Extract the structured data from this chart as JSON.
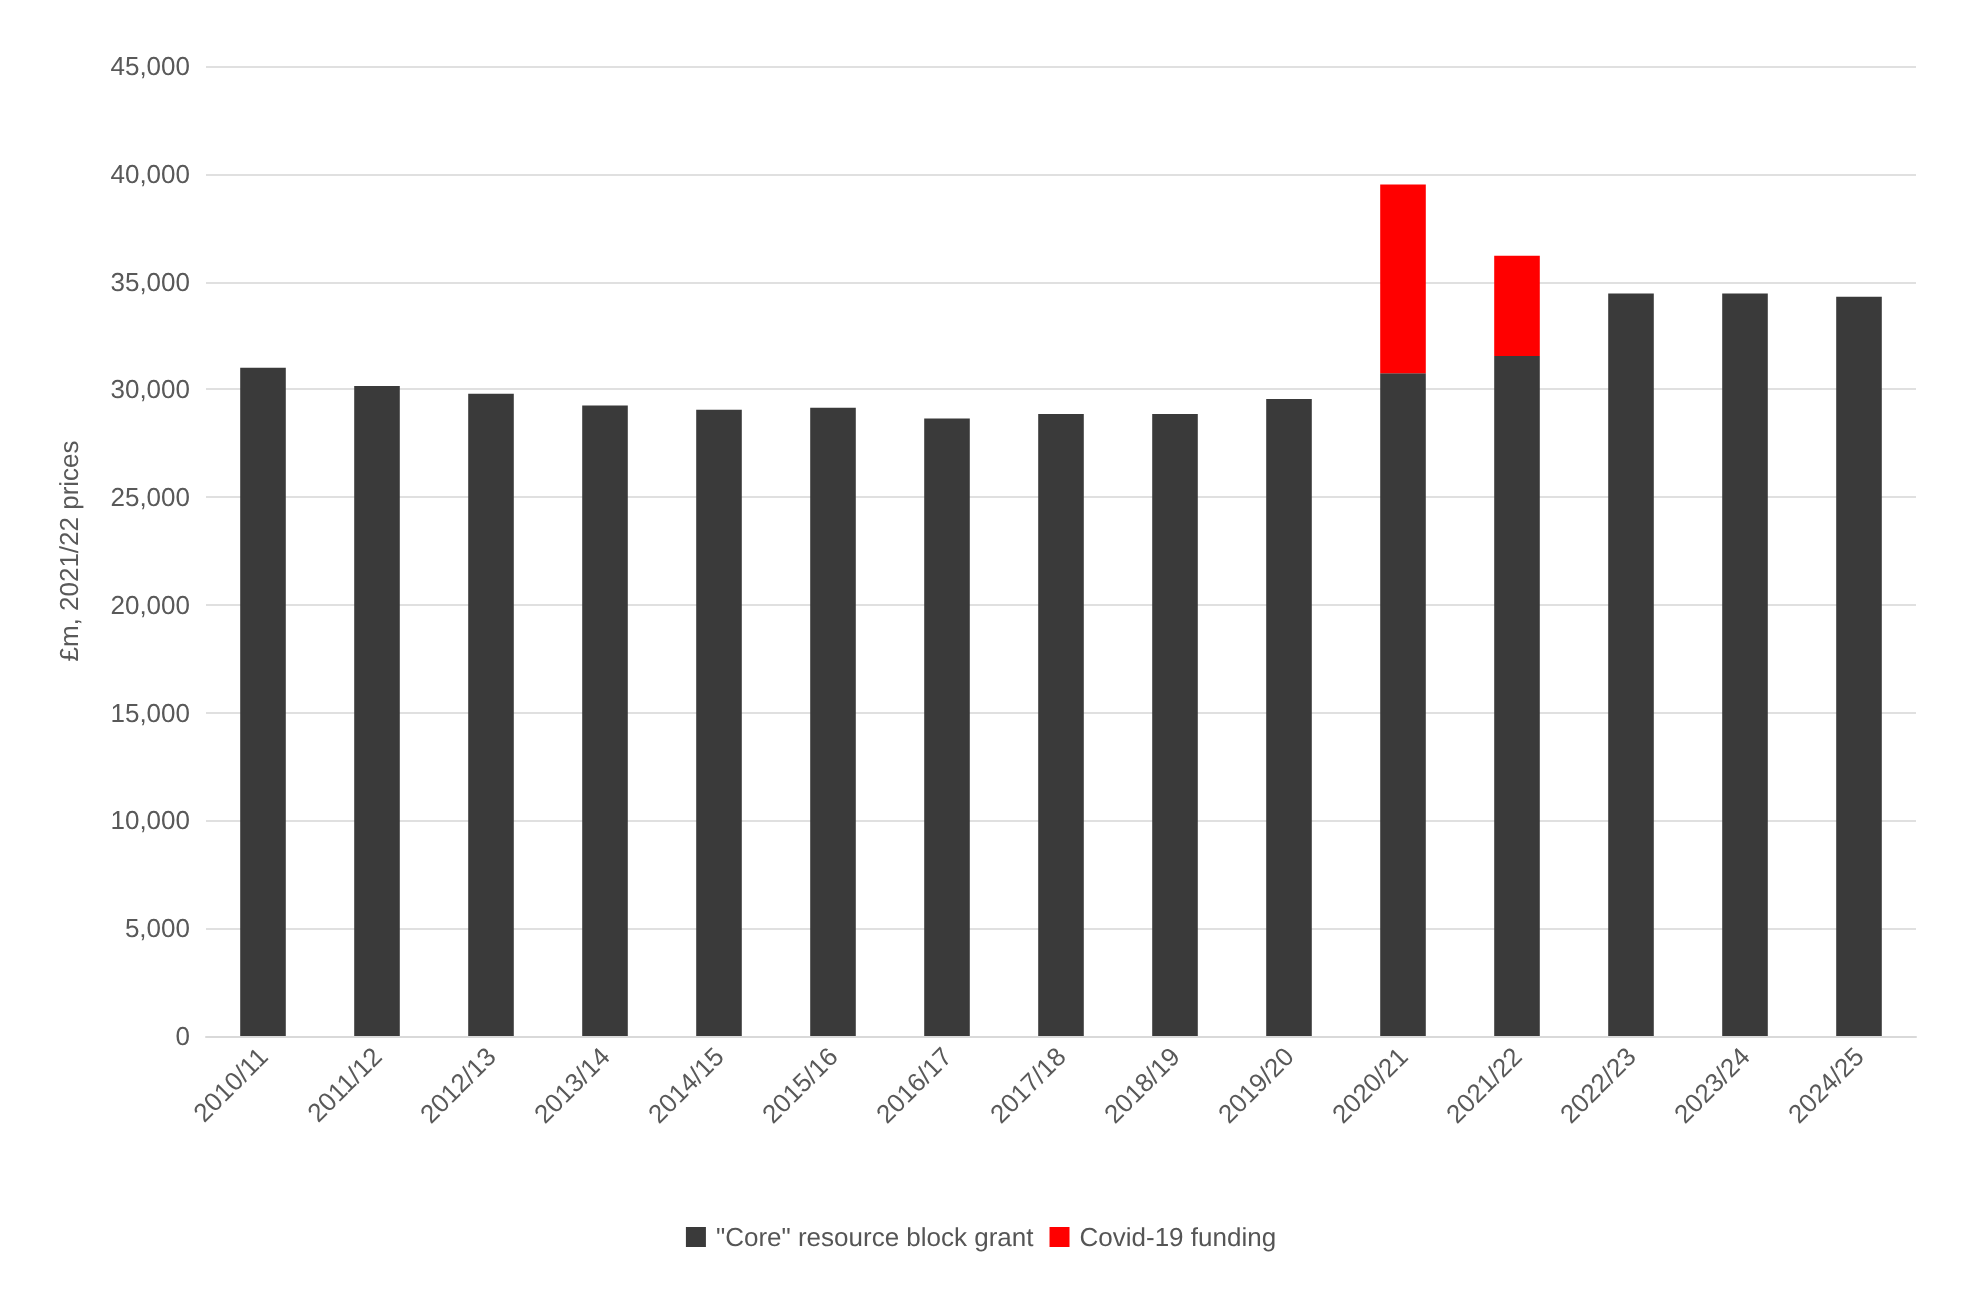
{
  "chart_data": {
    "type": "bar",
    "ylabel": "£m, 2021/22 prices",
    "stacked": true,
    "categories": [
      "2010/11",
      "2011/12",
      "2012/13",
      "2013/14",
      "2014/15",
      "2015/16",
      "2016/17",
      "2017/18",
      "2018/19",
      "2019/20",
      "2020/21",
      "2021/22",
      "2022/23",
      "2023/24",
      "2024/25"
    ],
    "series": [
      {
        "name": "\"Core\" resource block grant",
        "color": "#3a3a3a",
        "values": [
          31000,
          30150,
          29800,
          29250,
          29050,
          29150,
          28650,
          28850,
          28850,
          29550,
          30750,
          31550,
          34450,
          34450,
          34300
        ]
      },
      {
        "name": "Covid-19 funding",
        "color": "#ff0000",
        "values": [
          null,
          null,
          null,
          null,
          null,
          null,
          null,
          null,
          null,
          null,
          8750,
          4650,
          null,
          null,
          null
        ]
      }
    ],
    "ylim": [
      0,
      45000
    ],
    "yticks": [
      {
        "value": 0,
        "label": "0"
      },
      {
        "value": 5000,
        "label": "5,000"
      },
      {
        "value": 10000,
        "label": "10,000"
      },
      {
        "value": 15000,
        "label": "15,000"
      },
      {
        "value": 20000,
        "label": "20,000"
      },
      {
        "value": 25000,
        "label": "25,000"
      },
      {
        "value": 30000,
        "label": "30,000"
      },
      {
        "value": 35000,
        "label": "35,000"
      },
      {
        "value": 40000,
        "label": "40,000"
      },
      {
        "value": 45000,
        "label": "45,000"
      }
    ],
    "grid": "y",
    "legend": "bottom"
  }
}
